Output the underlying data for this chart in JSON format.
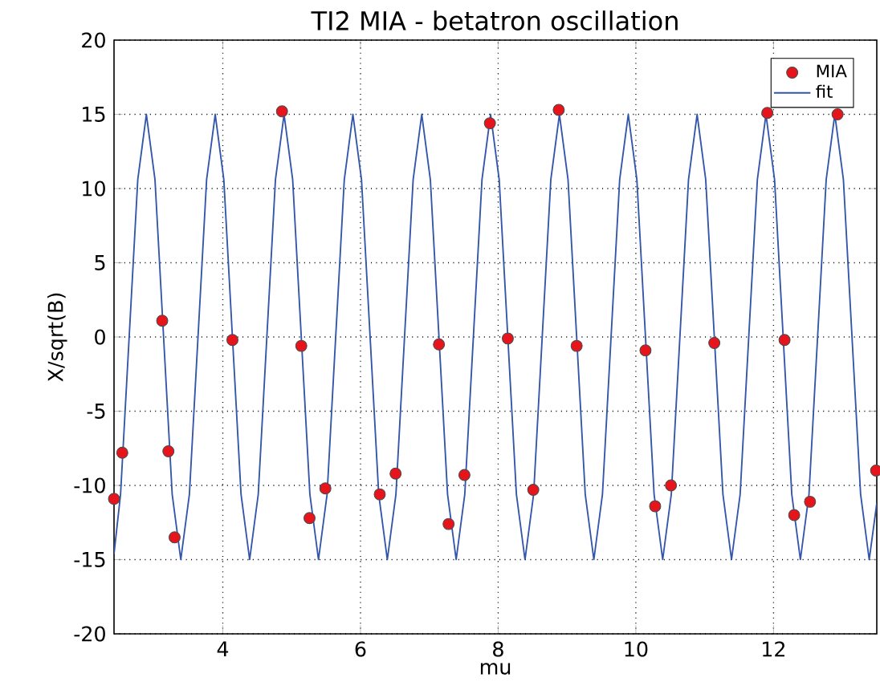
{
  "chart_data": {
    "type": "scatter",
    "title": "TI2 MIA - betatron oscillation",
    "xlabel": "mu",
    "ylabel": "X/sqrt(B)",
    "xlim": [
      2.42,
      13.5
    ],
    "ylim": [
      -20,
      20
    ],
    "xticks": [
      4,
      6,
      8,
      10,
      12
    ],
    "yticks": [
      -20,
      -15,
      -10,
      -5,
      0,
      5,
      10,
      15,
      20
    ],
    "grid": true,
    "legend": "top right",
    "series": [
      {
        "name": "MIA",
        "marker": "circle",
        "color": "#e8141c",
        "x": [
          2.42,
          2.54,
          3.12,
          3.21,
          3.3,
          4.14,
          4.86,
          5.14,
          5.26,
          5.49,
          6.28,
          6.51,
          7.14,
          7.28,
          7.51,
          7.88,
          8.14,
          8.51,
          8.88,
          9.14,
          10.14,
          10.28,
          10.51,
          11.14,
          11.91,
          12.16,
          12.3,
          12.53,
          12.93,
          13.49
        ],
        "values": [
          -10.9,
          -7.8,
          1.1,
          -7.7,
          -13.5,
          -0.2,
          15.2,
          -0.6,
          -12.2,
          -10.2,
          -10.6,
          -9.2,
          -0.5,
          -12.6,
          -9.3,
          14.4,
          -0.1,
          -10.3,
          15.3,
          -0.6,
          -0.9,
          -11.4,
          -10.0,
          -0.4,
          15.1,
          -0.2,
          -12.0,
          -11.1,
          15.0,
          -9.0
        ]
      },
      {
        "name": "fit",
        "type": "line",
        "marker": "none",
        "line_style": "solid",
        "color": "#3355aa",
        "x": [
          2.42,
          2.515,
          2.64,
          2.765,
          2.89,
          3.015,
          3.14,
          3.265,
          3.39,
          3.515,
          3.64,
          3.765,
          3.89,
          4.015,
          4.14,
          4.265,
          4.39,
          4.515,
          4.64,
          4.765,
          4.89,
          5.015,
          5.14,
          5.265,
          5.39,
          5.515,
          5.64,
          5.765,
          5.89,
          6.015,
          6.14,
          6.265,
          6.39,
          6.515,
          6.64,
          6.765,
          6.89,
          7.015,
          7.14,
          7.265,
          7.39,
          7.515,
          7.64,
          7.765,
          7.89,
          8.015,
          8.14,
          8.265,
          8.39,
          8.515,
          8.64,
          8.765,
          8.89,
          9.015,
          9.14,
          9.265,
          9.39,
          9.515,
          9.64,
          9.765,
          9.89,
          10.015,
          10.14,
          10.265,
          10.39,
          10.515,
          10.64,
          10.765,
          10.89,
          11.015,
          11.14,
          11.265,
          11.39,
          11.515,
          11.64,
          11.765,
          11.89,
          12.015,
          12.14,
          12.265,
          12.39,
          12.515,
          12.64,
          12.765,
          12.89,
          13.015,
          13.14,
          13.265,
          13.39,
          13.5
        ],
        "values": [
          -14.6,
          -10.6,
          0,
          10.6,
          15,
          10.6,
          0,
          -10.6,
          -15,
          -10.6,
          0,
          10.6,
          15,
          10.6,
          0,
          -10.6,
          -15,
          -10.6,
          0,
          10.6,
          15,
          10.6,
          0,
          -10.6,
          -15,
          -10.6,
          0,
          10.6,
          15,
          10.6,
          0,
          -10.6,
          -15,
          -10.6,
          0,
          10.6,
          15,
          10.6,
          0,
          -10.6,
          -15,
          -10.6,
          0,
          10.6,
          15,
          10.6,
          0,
          -10.6,
          -15,
          -10.6,
          0,
          10.6,
          15,
          10.6,
          0,
          -10.6,
          -15,
          -10.6,
          0,
          10.6,
          15,
          10.6,
          0,
          -10.6,
          -15,
          -10.6,
          0,
          10.6,
          15,
          10.6,
          0,
          -10.6,
          -15,
          -10.6,
          0,
          10.6,
          15,
          10.6,
          0,
          -10.6,
          -15,
          -10.6,
          0,
          10.6,
          15,
          10.6,
          0,
          -10.6,
          -15,
          -11.2
        ]
      }
    ]
  }
}
